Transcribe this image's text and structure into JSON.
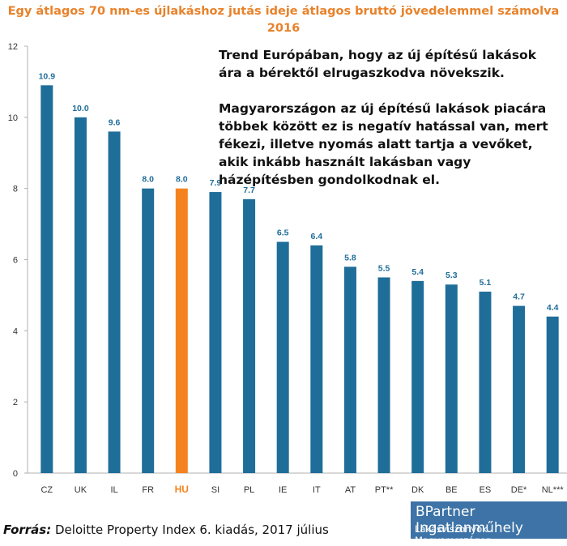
{
  "chart_data": {
    "type": "bar",
    "title_line1": "Egy átlagos 70 nm-es újlakáshoz jutás ideje átlagos bruttó jövedelemmel számolva",
    "title_line2": "2016",
    "categories": [
      "CZ",
      "UK",
      "IL",
      "FR",
      "HU",
      "SI",
      "PL",
      "IE",
      "IT",
      "AT",
      "PT**",
      "DK",
      "BE",
      "ES",
      "DE*",
      "NL***"
    ],
    "values": [
      10.9,
      10.0,
      9.6,
      8.0,
      8.0,
      7.9,
      7.7,
      6.5,
      6.4,
      5.8,
      5.5,
      5.4,
      5.3,
      5.1,
      4.7,
      4.4
    ],
    "data_labels": [
      "10.9",
      "10.0",
      "9.6",
      "8.0",
      "8.0",
      "7.9",
      "7.7",
      "6.5",
      "6.4",
      "5.8",
      "5.5",
      "5.4",
      "5.3",
      "5.1",
      "4.7",
      "4.4"
    ],
    "highlight": "HU",
    "ylim": [
      0,
      12
    ],
    "yticks": [
      "0",
      "2",
      "4",
      "6",
      "8",
      "10",
      "12"
    ],
    "grid": false,
    "xlabel": "",
    "ylabel": ""
  },
  "annotation": {
    "paragraph1": "Trend Európában, hogy az új építésű lakások ára a bérektől elrugaszkodva növekszik.",
    "paragraph2": "Magyarországon az új építésű lakások piacára többek között ez is negatív hatással van, mert fékezi, illetve nyomás alatt tartja a vevőket, akik inkább használt lakásban vagy házépítésben gondolkodnak el."
  },
  "source": {
    "label": "Forrás:",
    "text": " Deloitte Property Index 6. kiadás, 2017 július"
  },
  "logo": {
    "line1": "BPartner Ingatlanműhely",
    "line2": "Lakásviszonyok Magyarországon"
  },
  "colors": {
    "bar": "#1f6d99",
    "highlight": "#f4831f",
    "label": "#1f6d99",
    "title": "#e8822a",
    "axis": "#b0b0b0"
  }
}
